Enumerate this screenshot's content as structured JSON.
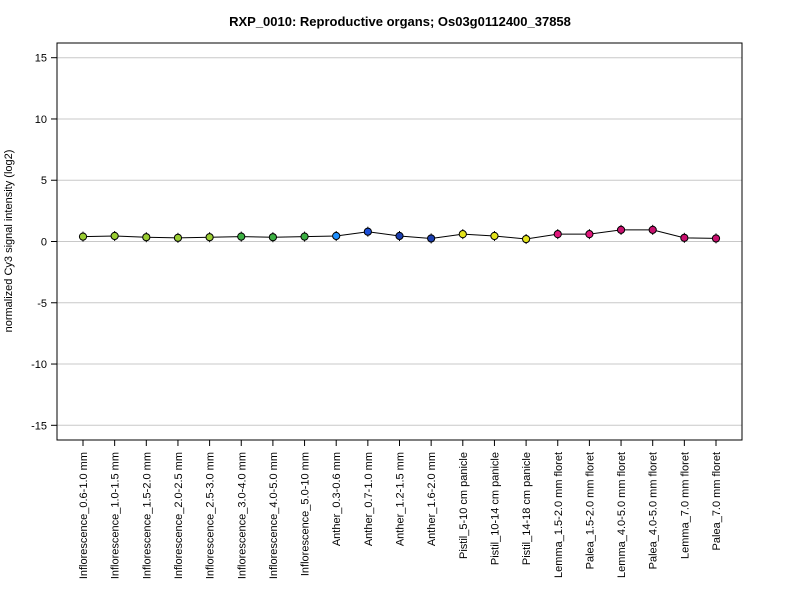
{
  "chart_data": {
    "type": "line",
    "title": "RXP_0010: Reproductive organs; Os03g0112400_37858",
    "xlabel": "",
    "ylabel": "normalized Cy3 signal intensity (log2)",
    "ylim": [
      -16.2,
      16.2
    ],
    "yticks": [
      15,
      10,
      5,
      0,
      -5,
      -10,
      -15
    ],
    "grid": true,
    "categories": [
      "Inflorescence_0.6-1.0 mm",
      "Inflorescence_1.0-1.5 mm",
      "Inflorescence_1.5-2.0 mm",
      "Inflorescence_2.0-2.5 mm",
      "Inflorescence_2.5-3.0 mm",
      "Inflorescence_3.0-4.0 mm",
      "Inflorescence_4.0-5.0 mm",
      "Inflorescence_5.0-10 mm",
      "Anther_0.3-0.6 mm",
      "Anther_0.7-1.0 mm",
      "Anther_1.2-1.5 mm",
      "Anther_1.6-2.0 mm",
      "Pistil_5-10 cm panicle",
      "Pistil_10-14 cm panicle",
      "Pistil_14-18 cm panicle",
      "Lemma_1.5-2.0 mm floret",
      "Palea_1.5-2.0 mm floret",
      "Lemma_4.0-5.0 mm floret",
      "Palea_4.0-5.0 mm floret",
      "Lemma_7.0 mm floret",
      "Palea_7.0 mm floret"
    ],
    "values": [
      0.4,
      0.45,
      0.35,
      0.3,
      0.35,
      0.4,
      0.35,
      0.4,
      0.45,
      0.8,
      0.45,
      0.25,
      0.6,
      0.45,
      0.2,
      0.6,
      0.6,
      0.95,
      0.95,
      0.3,
      0.25
    ],
    "point_colors": [
      "#9acd32",
      "#9acd32",
      "#9acd32",
      "#9acd32",
      "#9acd32",
      "#3cb043",
      "#3cb043",
      "#3cb043",
      "#1e90ff",
      "#1c4fd8",
      "#1c3fb0",
      "#1c3fb0",
      "#e3e31c",
      "#e3e31c",
      "#e3e31c",
      "#e0187c",
      "#e0187c",
      "#c8106e",
      "#c8106e",
      "#c8106e",
      "#c8106e"
    ],
    "line_color": "#000000",
    "grid_color": "#c8c8c8"
  }
}
